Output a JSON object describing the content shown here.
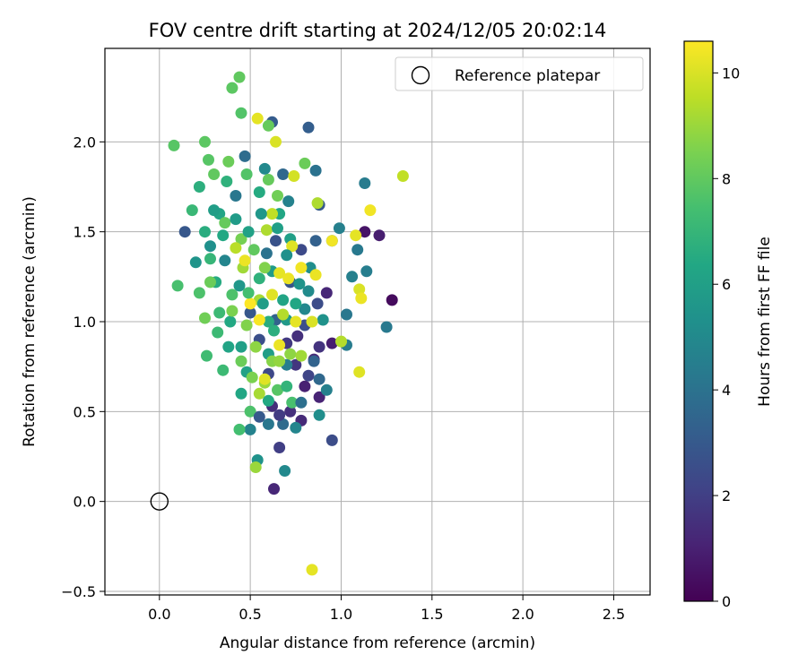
{
  "chart_data": {
    "type": "scatter",
    "title": "FOV centre drift starting at 2024/12/05 20:02:14",
    "xlabel": "Angular distance from reference (arcmin)",
    "ylabel": "Rotation from reference (arcmin)",
    "xlim": [
      -0.3,
      2.7
    ],
    "ylim": [
      -0.52,
      2.52
    ],
    "xticks": [
      0.0,
      0.5,
      1.0,
      1.5,
      2.0,
      2.5
    ],
    "xtick_labels": [
      "0.0",
      "0.5",
      "1.0",
      "1.5",
      "2.0",
      "2.5"
    ],
    "yticks": [
      -0.5,
      0.0,
      0.5,
      1.0,
      1.5,
      2.0
    ],
    "ytick_labels": [
      "−0.5",
      "0.0",
      "0.5",
      "1.0",
      "1.5",
      "2.0"
    ],
    "grid": true,
    "legend": {
      "placement": "top-right",
      "entries": [
        {
          "label": "Reference platepar",
          "marker": "open-circle",
          "color": "#000000"
        }
      ]
    },
    "reference_point": {
      "x": 0.0,
      "y": 0.0
    },
    "colorbar": {
      "label": "Hours from first FF file",
      "colormap": "viridis",
      "range": [
        0,
        10.6
      ],
      "ticks": [
        0,
        2,
        4,
        6,
        8,
        10
      ],
      "tick_labels": [
        "0",
        "2",
        "4",
        "6",
        "8",
        "10"
      ]
    },
    "points": [
      [
        0.63,
        0.07,
        1.2
      ],
      [
        0.62,
        0.53,
        1.4
      ],
      [
        0.78,
        0.45,
        1.3
      ],
      [
        0.88,
        0.58,
        1.1
      ],
      [
        0.72,
        0.5,
        1.5
      ],
      [
        0.8,
        0.64,
        1.0
      ],
      [
        0.95,
        0.88,
        0.9
      ],
      [
        0.85,
        0.79,
        1.3
      ],
      [
        1.28,
        1.12,
        0.3
      ],
      [
        1.13,
        1.5,
        0.6
      ],
      [
        1.21,
        1.48,
        0.9
      ],
      [
        0.92,
        1.16,
        1.2
      ],
      [
        0.88,
        0.86,
        1.6
      ],
      [
        0.76,
        0.92,
        1.5
      ],
      [
        0.7,
        0.88,
        1.8
      ],
      [
        0.66,
        0.3,
        2.0
      ],
      [
        0.95,
        0.34,
        2.5
      ],
      [
        0.82,
        0.7,
        2.2
      ],
      [
        0.75,
        0.76,
        1.7
      ],
      [
        0.55,
        0.9,
        2.6
      ],
      [
        0.6,
        0.71,
        2.3
      ],
      [
        0.8,
        0.98,
        2.6
      ],
      [
        0.87,
        1.1,
        2.5
      ],
      [
        0.78,
        1.4,
        2.4
      ],
      [
        0.14,
        1.5,
        2.9
      ],
      [
        0.5,
        1.05,
        2.9
      ],
      [
        0.64,
        1.45,
        2.7
      ],
      [
        0.88,
        1.65,
        3.0
      ],
      [
        0.86,
        1.45,
        3.3
      ],
      [
        0.82,
        2.08,
        3.2
      ],
      [
        0.62,
        2.11,
        3.1
      ],
      [
        0.72,
        1.22,
        2.8
      ],
      [
        0.64,
        1.01,
        3.4
      ],
      [
        0.68,
        1.82,
        3.6
      ],
      [
        0.47,
        1.92,
        3.8
      ],
      [
        0.86,
        1.84,
        4.0
      ],
      [
        0.42,
        1.7,
        4.2
      ],
      [
        1.13,
        1.77,
        4.4
      ],
      [
        1.09,
        1.4,
        4.3
      ],
      [
        1.14,
        1.28,
        4.5
      ],
      [
        1.03,
        1.04,
        4.2
      ],
      [
        1.25,
        0.97,
        4.3
      ],
      [
        1.06,
        1.25,
        4.6
      ],
      [
        1.03,
        0.87,
        4.4
      ],
      [
        0.7,
        0.76,
        4.5
      ],
      [
        0.75,
        0.41,
        4.8
      ],
      [
        0.69,
        0.17,
        5.0
      ],
      [
        0.5,
        0.4,
        4.7
      ],
      [
        0.54,
        0.23,
        5.4
      ],
      [
        0.88,
        0.48,
        5.2
      ],
      [
        0.8,
        1.07,
        4.9
      ],
      [
        0.99,
        1.52,
        4.6
      ],
      [
        0.95,
        1.45,
        4.1
      ],
      [
        0.59,
        1.38,
        4.0
      ],
      [
        0.71,
        1.67,
        4.7
      ],
      [
        0.58,
        1.85,
        5.0
      ],
      [
        0.36,
        1.34,
        4.8
      ],
      [
        0.28,
        1.42,
        5.3
      ],
      [
        0.2,
        1.33,
        5.5
      ],
      [
        0.44,
        1.2,
        5.6
      ],
      [
        0.62,
        1.28,
        5.8
      ],
      [
        0.7,
        1.01,
        5.7
      ],
      [
        0.77,
        1.21,
        5.5
      ],
      [
        0.83,
        1.3,
        5.2
      ],
      [
        0.9,
        1.01,
        5.4
      ],
      [
        0.6,
        0.82,
        5.9
      ],
      [
        0.45,
        0.86,
        6.0
      ],
      [
        0.48,
        0.72,
        6.1
      ],
      [
        0.38,
        0.86,
        6.2
      ],
      [
        0.45,
        0.6,
        6.3
      ],
      [
        0.39,
        1.0,
        6.4
      ],
      [
        0.31,
        1.22,
        6.5
      ],
      [
        0.25,
        1.5,
        6.6
      ],
      [
        0.33,
        1.6,
        6.2
      ],
      [
        0.22,
        1.75,
        6.7
      ],
      [
        0.37,
        1.78,
        6.8
      ],
      [
        0.55,
        1.72,
        6.5
      ],
      [
        0.66,
        1.6,
        6.3
      ],
      [
        0.72,
        1.46,
        6.0
      ],
      [
        0.68,
        1.12,
        6.2
      ],
      [
        0.6,
        1.0,
        6.6
      ],
      [
        0.55,
        1.24,
        6.8
      ],
      [
        0.63,
        0.95,
        6.7
      ],
      [
        0.28,
        1.35,
        7.0
      ],
      [
        0.18,
        1.62,
        7.1
      ],
      [
        0.32,
        0.94,
        7.2
      ],
      [
        0.26,
        0.81,
        7.3
      ],
      [
        0.35,
        0.73,
        7.2
      ],
      [
        0.1,
        1.2,
        7.5
      ],
      [
        0.22,
        1.16,
        7.6
      ],
      [
        0.44,
        0.4,
        7.4
      ],
      [
        0.5,
        0.5,
        7.6
      ],
      [
        0.65,
        0.62,
        7.8
      ],
      [
        0.73,
        0.55,
        7.5
      ],
      [
        0.08,
        1.98,
        7.8
      ],
      [
        0.25,
        2.0,
        7.9
      ],
      [
        0.45,
        2.16,
        7.7
      ],
      [
        0.6,
        2.09,
        8.1
      ],
      [
        0.44,
        2.36,
        8.0
      ],
      [
        0.4,
        2.3,
        7.9
      ],
      [
        0.27,
        1.9,
        7.8
      ],
      [
        0.38,
        1.89,
        8.2
      ],
      [
        0.3,
        1.82,
        8.0
      ],
      [
        0.48,
        1.82,
        7.7
      ],
      [
        0.6,
        1.79,
        8.1
      ],
      [
        0.65,
        1.7,
        8.3
      ],
      [
        0.8,
        1.88,
        8.2
      ],
      [
        0.36,
        1.55,
        8.1
      ],
      [
        0.45,
        1.46,
        8.4
      ],
      [
        0.52,
        1.4,
        8.0
      ],
      [
        0.58,
        1.3,
        8.6
      ],
      [
        0.28,
        1.22,
        8.2
      ],
      [
        0.25,
        1.02,
        8.3
      ],
      [
        0.4,
        1.06,
        8.5
      ],
      [
        0.48,
        0.98,
        8.6
      ],
      [
        0.53,
        0.86,
        8.8
      ],
      [
        0.62,
        0.78,
        8.7
      ],
      [
        0.58,
        0.66,
        9.0
      ],
      [
        0.55,
        0.6,
        9.2
      ],
      [
        0.53,
        0.19,
        9.0
      ],
      [
        0.66,
        0.78,
        8.9
      ],
      [
        0.72,
        0.82,
        8.8
      ],
      [
        0.78,
        0.81,
        9.1
      ],
      [
        0.87,
        1.66,
        9.3
      ],
      [
        1.34,
        1.81,
        9.6
      ],
      [
        1.0,
        0.89,
        9.4
      ],
      [
        0.68,
        1.04,
        9.4
      ],
      [
        0.55,
        1.12,
        9.2
      ],
      [
        0.46,
        1.3,
        9.1
      ],
      [
        0.42,
        1.41,
        9.5
      ],
      [
        0.59,
        1.51,
        9.3
      ],
      [
        0.62,
        1.6,
        9.6
      ],
      [
        0.54,
        2.13,
        10.2
      ],
      [
        0.64,
        2.0,
        10.0
      ],
      [
        0.74,
        1.81,
        9.9
      ],
      [
        0.73,
        1.42,
        10.1
      ],
      [
        0.66,
        1.27,
        10.2
      ],
      [
        0.86,
        1.26,
        10.3
      ],
      [
        0.62,
        1.15,
        10.1
      ],
      [
        0.55,
        1.01,
        10.5
      ],
      [
        0.66,
        0.87,
        10.3
      ],
      [
        0.75,
        1.0,
        10.2
      ],
      [
        0.84,
        1.0,
        10.0
      ],
      [
        0.78,
        1.3,
        10.4
      ],
      [
        0.71,
        1.24,
        10.3
      ],
      [
        0.58,
        0.68,
        10.1
      ],
      [
        0.95,
        1.45,
        10.4
      ],
      [
        1.08,
        1.48,
        10.2
      ],
      [
        1.1,
        1.18,
        10.0
      ],
      [
        1.11,
        1.13,
        10.3
      ],
      [
        1.1,
        0.72,
        10.1
      ],
      [
        1.16,
        1.62,
        10.4
      ],
      [
        0.84,
        -0.38,
        10.2
      ],
      [
        0.5,
        1.1,
        10.6
      ],
      [
        0.47,
        1.34,
        10.3
      ],
      [
        0.3,
        1.62,
        5.9
      ],
      [
        0.35,
        1.48,
        6.4
      ],
      [
        0.42,
        1.57,
        5.8
      ],
      [
        0.49,
        1.5,
        6.1
      ],
      [
        0.56,
        1.6,
        5.6
      ],
      [
        0.65,
        1.52,
        6.0
      ],
      [
        0.7,
        1.37,
        5.3
      ],
      [
        0.75,
        1.1,
        6.3
      ],
      [
        0.82,
        1.17,
        5.1
      ],
      [
        0.57,
        1.1,
        5.9
      ],
      [
        0.49,
        1.16,
        7.4
      ],
      [
        0.4,
        1.15,
        7.6
      ],
      [
        0.33,
        1.05,
        7.2
      ],
      [
        0.45,
        0.78,
        8.2
      ],
      [
        0.51,
        0.69,
        8.5
      ],
      [
        0.6,
        0.56,
        6.4
      ],
      [
        0.7,
        0.64,
        6.9
      ],
      [
        0.85,
        0.78,
        3.4
      ],
      [
        0.92,
        0.62,
        4.6
      ],
      [
        0.78,
        0.55,
        3.9
      ],
      [
        0.68,
        0.43,
        3.7
      ],
      [
        0.6,
        0.43,
        4.2
      ],
      [
        0.55,
        0.47,
        3.0
      ],
      [
        0.66,
        0.48,
        1.9
      ],
      [
        0.88,
        0.68,
        3.6
      ]
    ]
  }
}
